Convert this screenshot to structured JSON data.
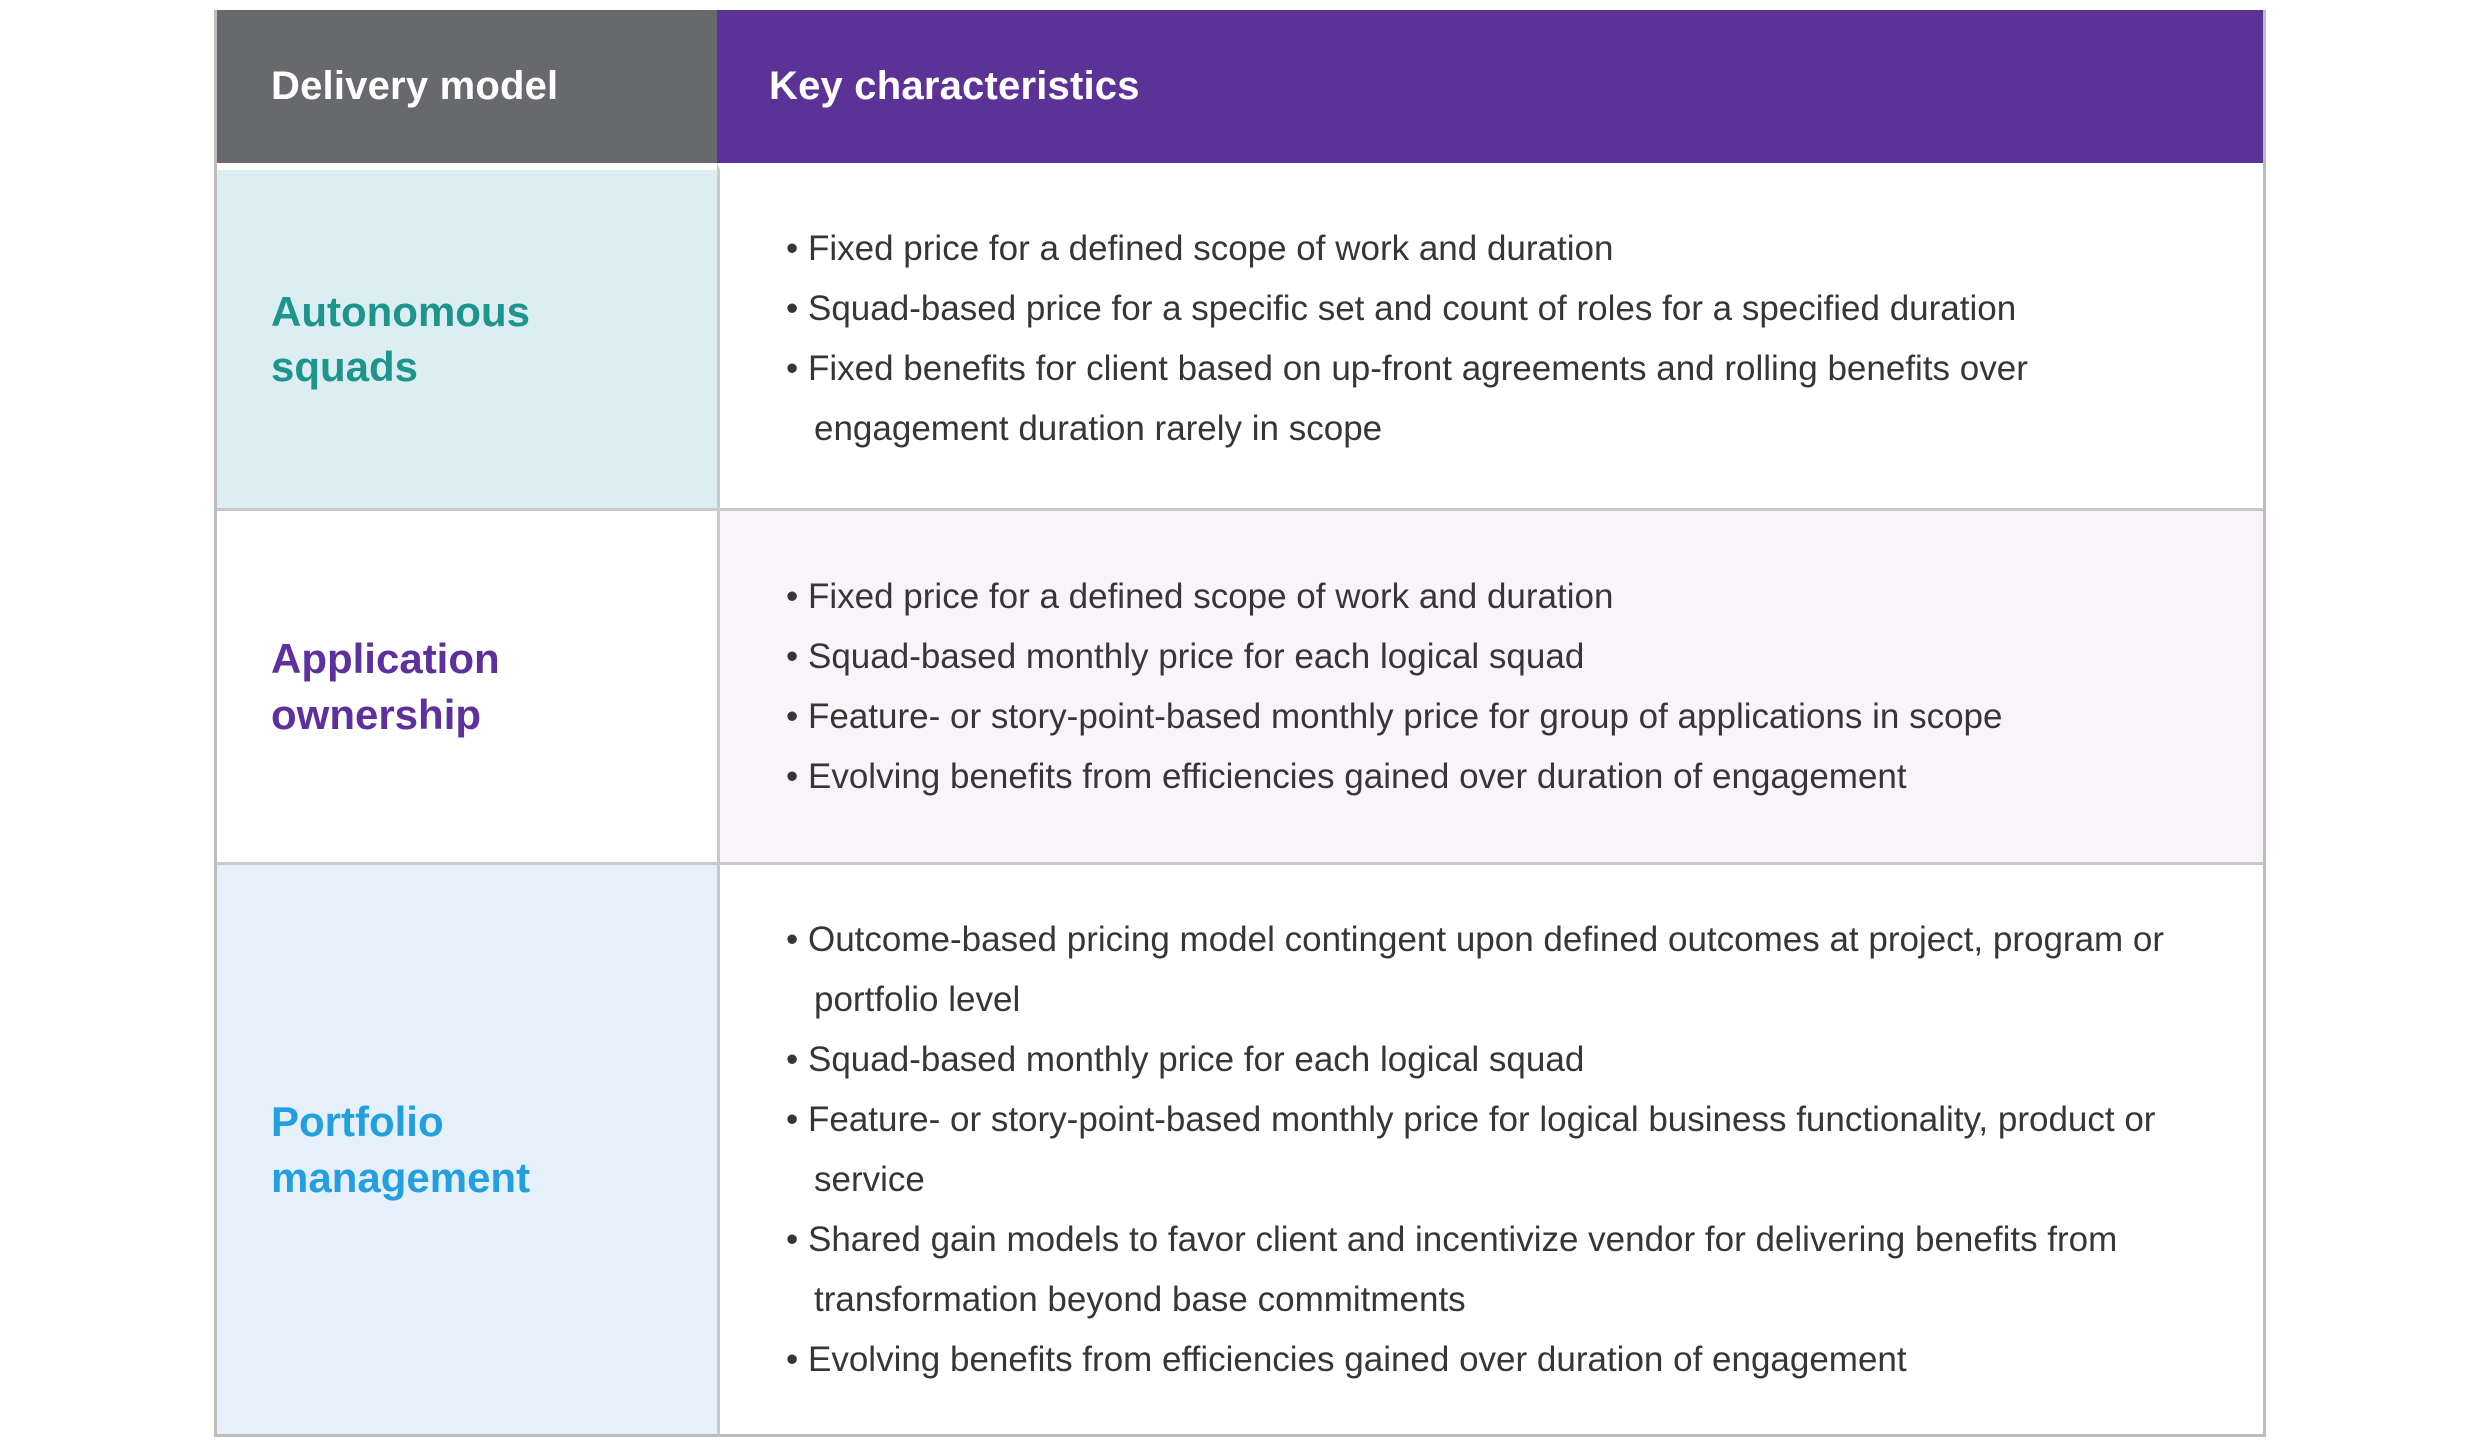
{
  "header": {
    "col1_label": "Delivery model",
    "col2_label": "Key characteristics",
    "col1_bg": "#67696d",
    "col2_bg": "#5d3297",
    "text_color": "#ffffff"
  },
  "body_text_color": "#363636",
  "rows": [
    {
      "model": "Autonomous squads",
      "model_color": "#1d948c",
      "left_bg": "#ddeef3",
      "right_bg": "#ffffff",
      "bullets": [
        "Fixed price for a defined scope of work and duration",
        "Squad-based price for a specific set and count of roles for a specified duration",
        "Fixed benefits for client based on up-front agreements and rolling benefits over engagement duration rarely in scope"
      ]
    },
    {
      "model": "Application ownership",
      "model_color": "#5e309e",
      "left_bg": "#ffffff",
      "right_bg": "#f9f4f9",
      "bullets": [
        "Fixed price for a defined scope of work and duration",
        "Squad-based monthly price for each logical squad",
        "Feature- or story-point-based monthly price for group of applications in scope",
        "Evolving benefits from efficiencies gained over duration of engagement"
      ]
    },
    {
      "model": "Portfolio management",
      "model_color": "#239fdf",
      "left_bg": "#e5f0fa",
      "right_bg": "#ffffff",
      "bullets": [
        "Outcome-based pricing model contingent upon defined outcomes at project, program or portfolio level",
        "Squad-based monthly price for each logical squad",
        "Feature- or story-point-based monthly price for logical business functionality, product or service",
        "Shared gain models to favor client and incentivize vendor for delivering benefits from transformation beyond base commitments",
        "Evolving benefits from efficiencies gained over duration of engagement"
      ]
    }
  ]
}
